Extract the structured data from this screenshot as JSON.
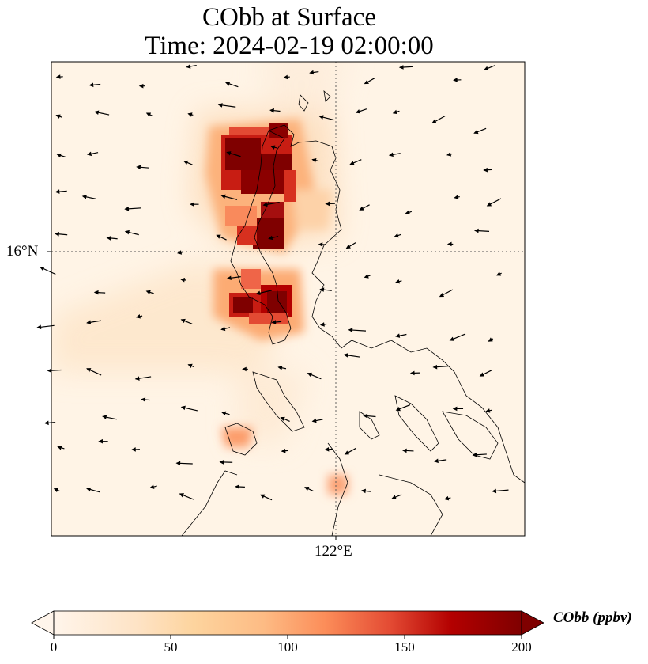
{
  "title": {
    "line1": "CObb at Surface",
    "line2": "Time: 2024-02-19 02:00:00"
  },
  "map": {
    "lat_label": "16°N",
    "lon_label": "122°E"
  },
  "colorbar": {
    "label": "CObb (ppbv)",
    "ticks": [
      "0",
      "50",
      "100",
      "150",
      "200"
    ],
    "min": 0,
    "max": 200,
    "extend": "both",
    "colors": [
      "#fff5eb",
      "#fdd49e",
      "#fdbb84",
      "#fc8d59",
      "#ef6548",
      "#d7301f",
      "#b30000",
      "#7f0000"
    ]
  }
}
